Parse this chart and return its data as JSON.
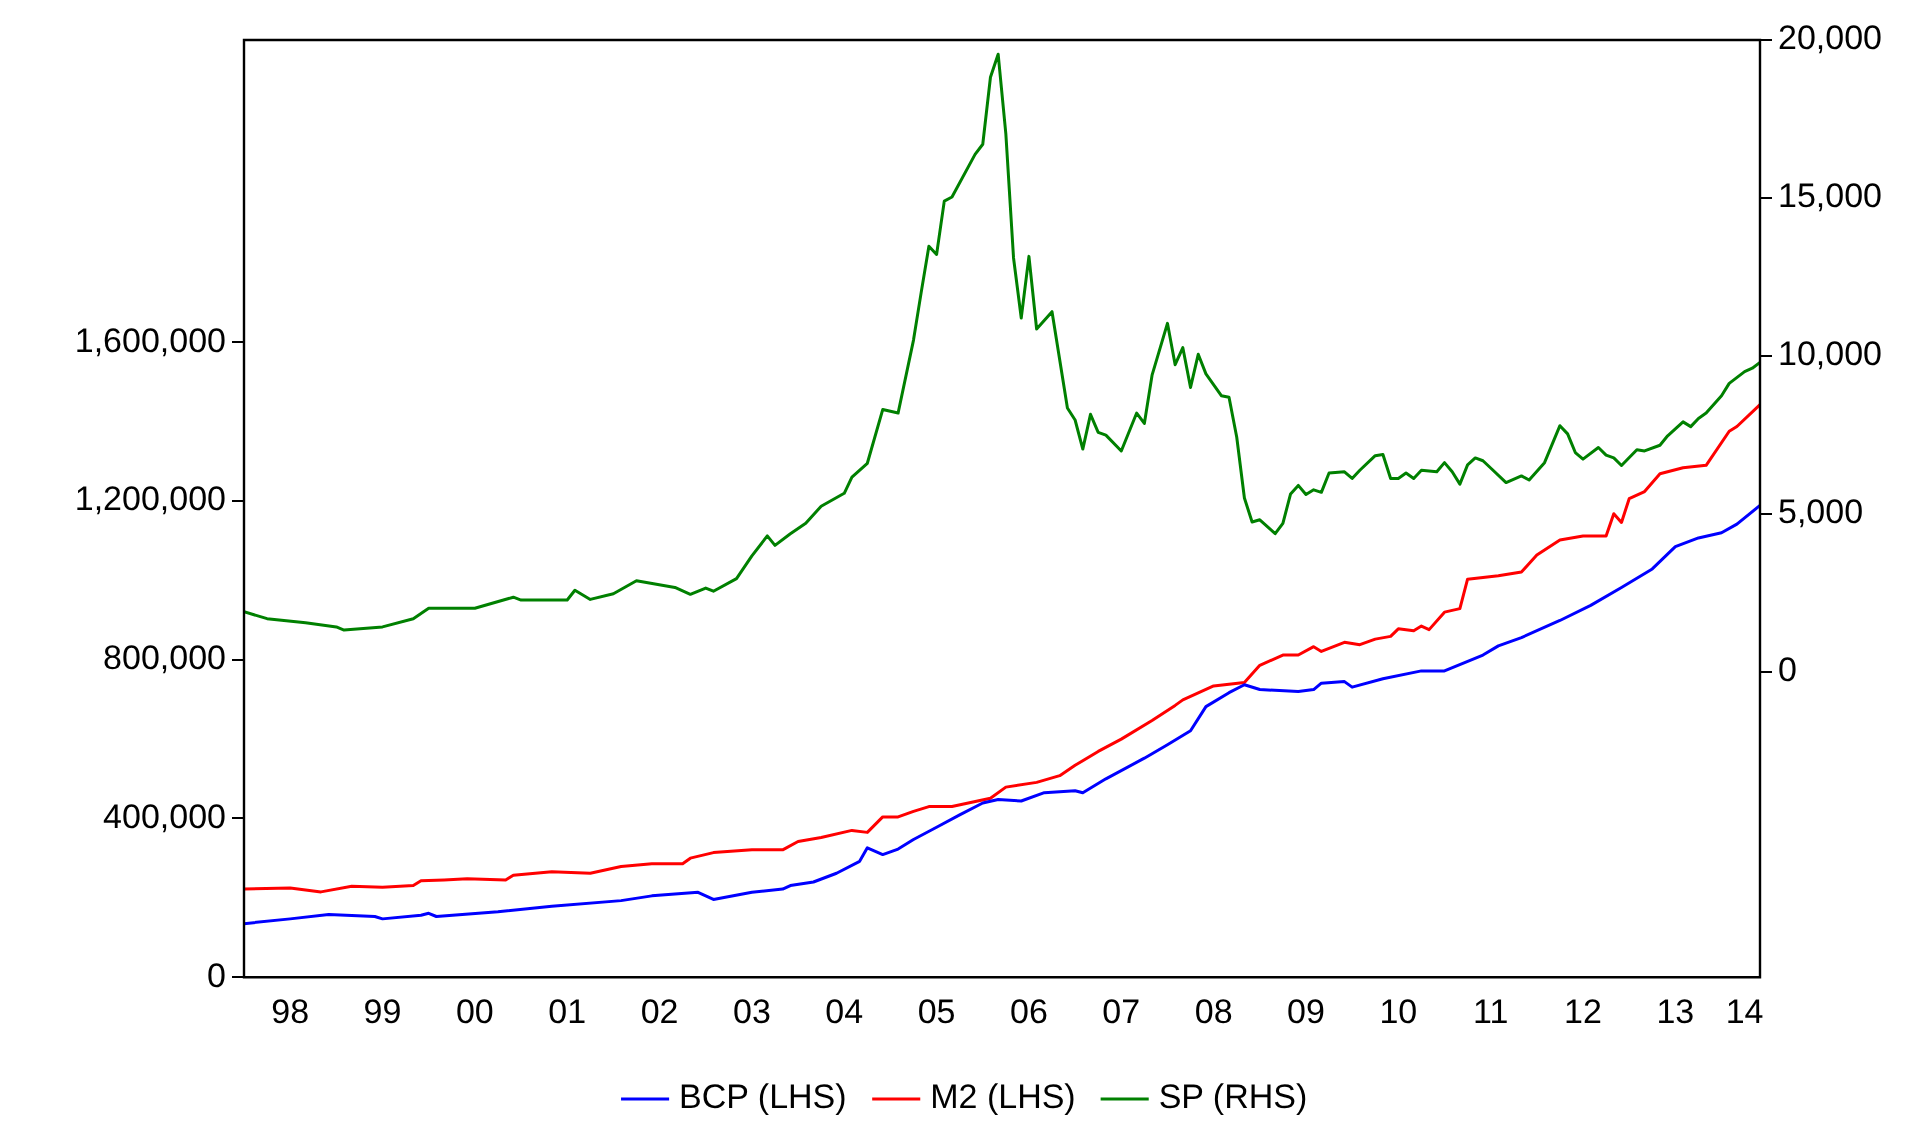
{
  "chart_data": {
    "type": "line",
    "xlim": [
      "1998-01",
      "2014-06"
    ],
    "xticks": [
      {
        "value": "1998-07",
        "label": "98"
      },
      {
        "value": "1999-07",
        "label": "99"
      },
      {
        "value": "2000-07",
        "label": "00"
      },
      {
        "value": "2001-07",
        "label": "01"
      },
      {
        "value": "2002-07",
        "label": "02"
      },
      {
        "value": "2003-07",
        "label": "03"
      },
      {
        "value": "2004-07",
        "label": "04"
      },
      {
        "value": "2005-07",
        "label": "05"
      },
      {
        "value": "2006-07",
        "label": "06"
      },
      {
        "value": "2007-07",
        "label": "07"
      },
      {
        "value": "2008-07",
        "label": "08"
      },
      {
        "value": "2009-07",
        "label": "09"
      },
      {
        "value": "2010-07",
        "label": "10"
      },
      {
        "value": "2011-07",
        "label": "11"
      },
      {
        "value": "2012-07",
        "label": "12"
      },
      {
        "value": "2013-07",
        "label": "13"
      },
      {
        "value": "2014-04",
        "label": "14"
      }
    ],
    "ylim": [
      0,
      2362000
    ],
    "yticks": [
      {
        "value": 0,
        "label": "0"
      },
      {
        "value": 400000,
        "label": "400,000"
      },
      {
        "value": 800000,
        "label": "800,000"
      },
      {
        "value": 1200000,
        "label": "1,200,000"
      },
      {
        "value": 1600000,
        "label": "1,600,000"
      }
    ],
    "y2lim": [
      -9670,
      20000
    ],
    "y2ticks": [
      {
        "value": 0,
        "label": "0"
      },
      {
        "value": 5000,
        "label": "5,000"
      },
      {
        "value": 10000,
        "label": "10,000"
      },
      {
        "value": 15000,
        "label": "15,000"
      },
      {
        "value": 20000,
        "label": "20,000"
      }
    ],
    "grid": false,
    "legend": "bottom",
    "marker": "none",
    "line_style": "solid",
    "series": [
      {
        "name": "BCP (LHS)",
        "color": "#0000ff",
        "x": [
          "1998-01",
          "1998-07",
          "1998-12",
          "1999-06",
          "1999-07",
          "1999-12",
          "2000-01",
          "2000-02",
          "2000-10",
          "2001-05",
          "2002-02",
          "2002-06",
          "2002-12",
          "2003-01",
          "2003-02",
          "2003-07",
          "2003-11",
          "2003-12",
          "2004-03",
          "2004-06",
          "2004-09",
          "2004-10",
          "2004-12",
          "2005-02",
          "2005-04",
          "2005-07",
          "2005-10",
          "2006-01",
          "2006-03",
          "2006-06",
          "2006-09",
          "2007-01",
          "2007-02",
          "2007-05",
          "2007-10",
          "2008-01",
          "2008-04",
          "2008-06",
          "2008-09",
          "2008-11",
          "2009-01",
          "2009-06",
          "2009-08",
          "2009-09",
          "2009-12",
          "2010-01",
          "2010-05",
          "2010-10",
          "2011-01",
          "2011-06",
          "2011-08",
          "2011-11",
          "2012-04",
          "2012-08",
          "2012-12",
          "2013-04",
          "2013-07",
          "2013-10",
          "2014-01",
          "2014-03",
          "2014-06"
        ],
        "values": [
          135000,
          147000,
          158000,
          153000,
          147000,
          156000,
          161000,
          153000,
          165000,
          179000,
          193000,
          205000,
          214000,
          205000,
          196000,
          214000,
          222000,
          231000,
          240000,
          262000,
          292000,
          326000,
          309000,
          323000,
          347000,
          378000,
          409000,
          439000,
          448000,
          444000,
          465000,
          470000,
          465000,
          500000,
          552000,
          586000,
          621000,
          682000,
          717000,
          737000,
          725000,
          720000,
          725000,
          741000,
          745000,
          731000,
          752000,
          772000,
          772000,
          812000,
          835000,
          856000,
          899000,
          937000,
          982000,
          1029000,
          1085000,
          1107000,
          1120000,
          1142000,
          1189000
        ]
      },
      {
        "name": "M2 (LHS)",
        "color": "#ff0000",
        "x": [
          "1998-01",
          "1998-07",
          "1998-11",
          "1999-03",
          "1999-07",
          "1999-11",
          "1999-12",
          "2000-03",
          "2000-06",
          "2000-11",
          "2000-12",
          "2001-05",
          "2001-10",
          "2002-02",
          "2002-06",
          "2002-10",
          "2002-11",
          "2003-02",
          "2003-07",
          "2003-11",
          "2004-01",
          "2004-04",
          "2004-08",
          "2004-10",
          "2004-12",
          "2005-02",
          "2005-04",
          "2005-06",
          "2005-09",
          "2006-02",
          "2006-04",
          "2006-08",
          "2006-11",
          "2007-01",
          "2007-04",
          "2007-07",
          "2007-11",
          "2008-02",
          "2008-03",
          "2008-07",
          "2008-11",
          "2009-01",
          "2009-04",
          "2009-06",
          "2009-08",
          "2009-09",
          "2009-12",
          "2010-02",
          "2010-04",
          "2010-06",
          "2010-07",
          "2010-09",
          "2010-10",
          "2010-11",
          "2011-01",
          "2011-03",
          "2011-04",
          "2011-08",
          "2011-11",
          "2012-01",
          "2012-04",
          "2012-07",
          "2012-10",
          "2012-11",
          "2012-12",
          "2013-01",
          "2013-03",
          "2013-05",
          "2013-08",
          "2013-11",
          "2014-02",
          "2014-03",
          "2014-06"
        ],
        "values": [
          222000,
          225000,
          215000,
          229000,
          227000,
          231000,
          243000,
          245000,
          248000,
          245000,
          257000,
          266000,
          262000,
          279000,
          286000,
          286000,
          300000,
          314000,
          321000,
          321000,
          342000,
          352000,
          370000,
          365000,
          404000,
          404000,
          418000,
          430000,
          430000,
          451000,
          479000,
          491000,
          508000,
          534000,
          569000,
          600000,
          647000,
          685000,
          699000,
          734000,
          743000,
          786000,
          812000,
          812000,
          833000,
          821000,
          844000,
          838000,
          852000,
          859000,
          878000,
          873000,
          885000,
          876000,
          920000,
          929000,
          1003000,
          1012000,
          1021000,
          1064000,
          1102000,
          1112000,
          1112000,
          1168000,
          1146000,
          1206000,
          1224000,
          1269000,
          1284000,
          1290000,
          1376000,
          1388000,
          1443000
        ]
      },
      {
        "name": "SP (RHS)",
        "color": "#008000",
        "axis": "y2",
        "x": [
          "1998-01",
          "1998-04",
          "1998-09",
          "1999-01",
          "1999-02",
          "1999-07",
          "1999-11",
          "2000-01",
          "2000-07",
          "2000-12",
          "2001-01",
          "2001-07",
          "2001-08",
          "2001-10",
          "2002-01",
          "2002-04",
          "2002-09",
          "2002-11",
          "2003-01",
          "2003-02",
          "2003-05",
          "2003-07",
          "2003-09",
          "2003-10",
          "2003-12",
          "2004-02",
          "2004-04",
          "2004-07",
          "2004-08",
          "2004-10",
          "2004-12",
          "2005-02",
          "2005-04",
          "2005-05",
          "2005-06",
          "2005-07",
          "2005-08",
          "2005-09",
          "2005-12",
          "2006-01",
          "2006-02",
          "2006-03",
          "2006-04",
          "2006-05",
          "2006-06",
          "2006-07",
          "2006-08",
          "2006-10",
          "2006-12",
          "2007-01",
          "2007-02",
          "2007-03",
          "2007-04",
          "2007-05",
          "2007-07",
          "2007-09",
          "2007-10",
          "2007-11",
          "2008-01",
          "2008-02",
          "2008-03",
          "2008-04",
          "2008-05",
          "2008-06",
          "2008-08",
          "2008-09",
          "2008-10",
          "2008-11",
          "2008-12",
          "2009-01",
          "2009-03",
          "2009-04",
          "2009-05",
          "2009-06",
          "2009-07",
          "2009-08",
          "2009-09",
          "2009-10",
          "2009-12",
          "2010-01",
          "2010-02",
          "2010-04",
          "2010-05",
          "2010-06",
          "2010-07",
          "2010-08",
          "2010-09",
          "2010-10",
          "2010-12",
          "2011-01",
          "2011-02",
          "2011-03",
          "2011-04",
          "2011-05",
          "2011-06",
          "2011-07",
          "2011-09",
          "2011-11",
          "2011-12",
          "2012-02",
          "2012-04",
          "2012-05",
          "2012-06",
          "2012-07",
          "2012-09",
          "2012-10",
          "2012-11",
          "2012-12",
          "2013-02",
          "2013-03",
          "2013-05",
          "2013-06",
          "2013-08",
          "2013-09",
          "2013-10",
          "2013-11",
          "2014-01",
          "2014-02",
          "2014-04",
          "2014-05",
          "2014-06"
        ],
        "values": [
          1900,
          1680,
          1550,
          1420,
          1320,
          1420,
          1680,
          2010,
          2010,
          2360,
          2270,
          2270,
          2580,
          2290,
          2470,
          2880,
          2670,
          2450,
          2650,
          2550,
          2950,
          3670,
          4300,
          4000,
          4370,
          4700,
          5240,
          5650,
          6160,
          6600,
          8300,
          8190,
          10500,
          12010,
          13470,
          13210,
          14900,
          15030,
          16380,
          16700,
          18820,
          19550,
          17030,
          13100,
          11200,
          13150,
          10850,
          11400,
          8350,
          7970,
          7050,
          8150,
          7580,
          7490,
          6990,
          8190,
          7860,
          9390,
          11030,
          9720,
          10260,
          9000,
          10050,
          9430,
          8740,
          8690,
          7430,
          5500,
          4740,
          4810,
          4370,
          4700,
          5630,
          5900,
          5610,
          5760,
          5680,
          6290,
          6330,
          6120,
          6380,
          6840,
          6880,
          6120,
          6120,
          6290,
          6120,
          6380,
          6330,
          6620,
          6330,
          5940,
          6550,
          6770,
          6680,
          6450,
          5990,
          6200,
          6070,
          6620,
          7790,
          7530,
          6940,
          6730,
          7100,
          6860,
          6770,
          6530,
          7030,
          6990,
          7170,
          7470,
          7910,
          7760,
          8020,
          8190,
          8740,
          9130,
          9500,
          9610,
          9790
        ]
      }
    ]
  }
}
